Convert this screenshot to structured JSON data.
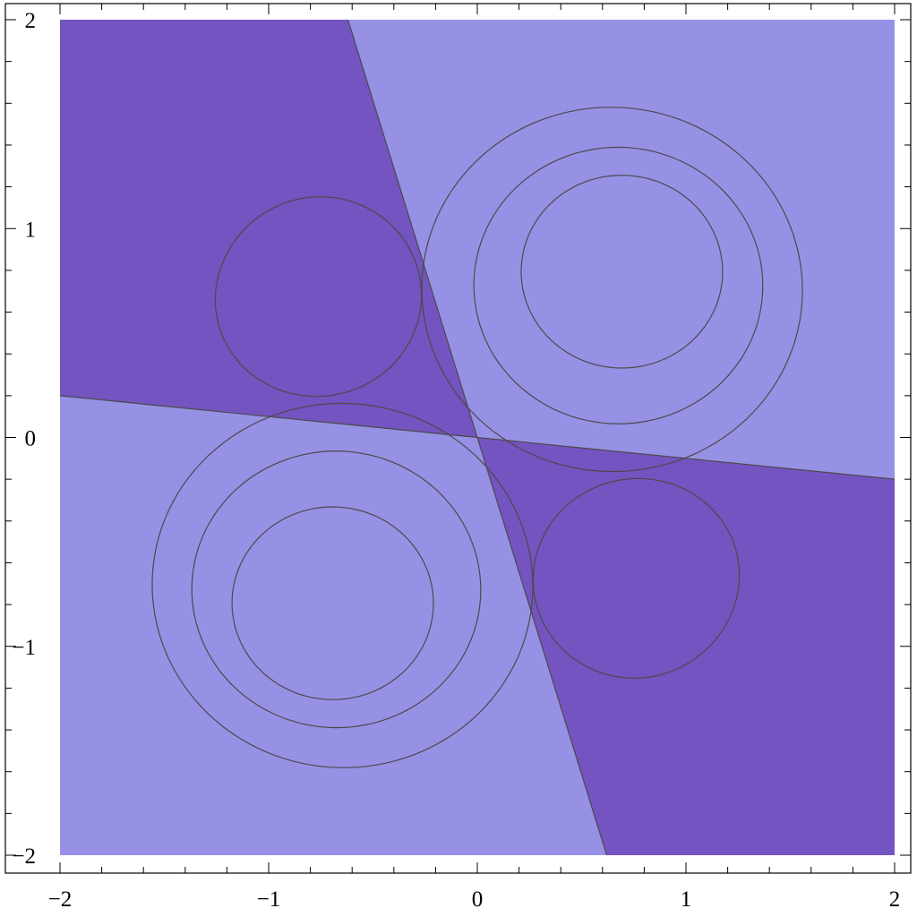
{
  "chart_data": {
    "type": "contour",
    "title": "",
    "xlabel": "",
    "ylabel": "",
    "xlim": [
      -2,
      2
    ],
    "ylim": [
      -2,
      2
    ],
    "x_ticks": [
      {
        "value": -2,
        "label": "−2"
      },
      {
        "value": -1,
        "label": "−1"
      },
      {
        "value": 0,
        "label": "0"
      },
      {
        "value": 1,
        "label": "1"
      },
      {
        "value": 2,
        "label": "2"
      }
    ],
    "y_ticks": [
      {
        "value": -2,
        "label": "−2"
      },
      {
        "value": -1,
        "label": "−1"
      },
      {
        "value": 0,
        "label": "0"
      },
      {
        "value": 1,
        "label": "1"
      },
      {
        "value": 2,
        "label": "2"
      }
    ],
    "minor_tick_step": 0.2,
    "grid": false,
    "legend": "none",
    "zero_contour_lines": [
      {
        "from": [
          -0.62,
          2
        ],
        "to": [
          0.62,
          -2
        ]
      },
      {
        "from": [
          -2,
          0.2
        ],
        "to": [
          2,
          -0.2
        ]
      }
    ],
    "regions": [
      {
        "name": "positive-lobe-upper-right",
        "center": [
          0.71,
          0.71
        ],
        "sign": "positive",
        "contours": [
          {
            "level": "outer",
            "rx": 0.91,
            "ry": 0.87,
            "color": "#b4bdea"
          },
          {
            "level": "middle",
            "rx": 0.68,
            "ry": 0.62,
            "color": "#cfdce3"
          },
          {
            "level": "inner",
            "rx": 0.48,
            "ry": 0.47,
            "color": "#f0e6d7"
          }
        ]
      },
      {
        "name": "positive-lobe-lower-left",
        "center": [
          -0.71,
          -0.71
        ],
        "sign": "positive",
        "contours": [
          {
            "level": "outer",
            "rx": 0.91,
            "ry": 0.87,
            "color": "#b4bdea"
          },
          {
            "level": "middle",
            "rx": 0.68,
            "ry": 0.62,
            "color": "#cfdce3"
          },
          {
            "level": "inner",
            "rx": 0.48,
            "ry": 0.47,
            "color": "#f0e6d7"
          }
        ]
      },
      {
        "name": "negative-lobe-upper-left",
        "center": [
          -0.85,
          0.73
        ],
        "sign": "negative",
        "contours": [
          {
            "level": "inner",
            "color": "#4c1087"
          }
        ]
      },
      {
        "name": "negative-lobe-lower-right",
        "center": [
          0.85,
          -0.73
        ],
        "sign": "negative",
        "contours": [
          {
            "level": "inner",
            "color": "#4c1087"
          }
        ]
      }
    ],
    "colors": {
      "positive_background": "#9791e5",
      "negative_background": "#7454c0",
      "negative_core": "#4c1087",
      "positive_outer": "#b4bdea",
      "positive_middle": "#cfdce3",
      "positive_inner": "#f0e6d7"
    }
  }
}
